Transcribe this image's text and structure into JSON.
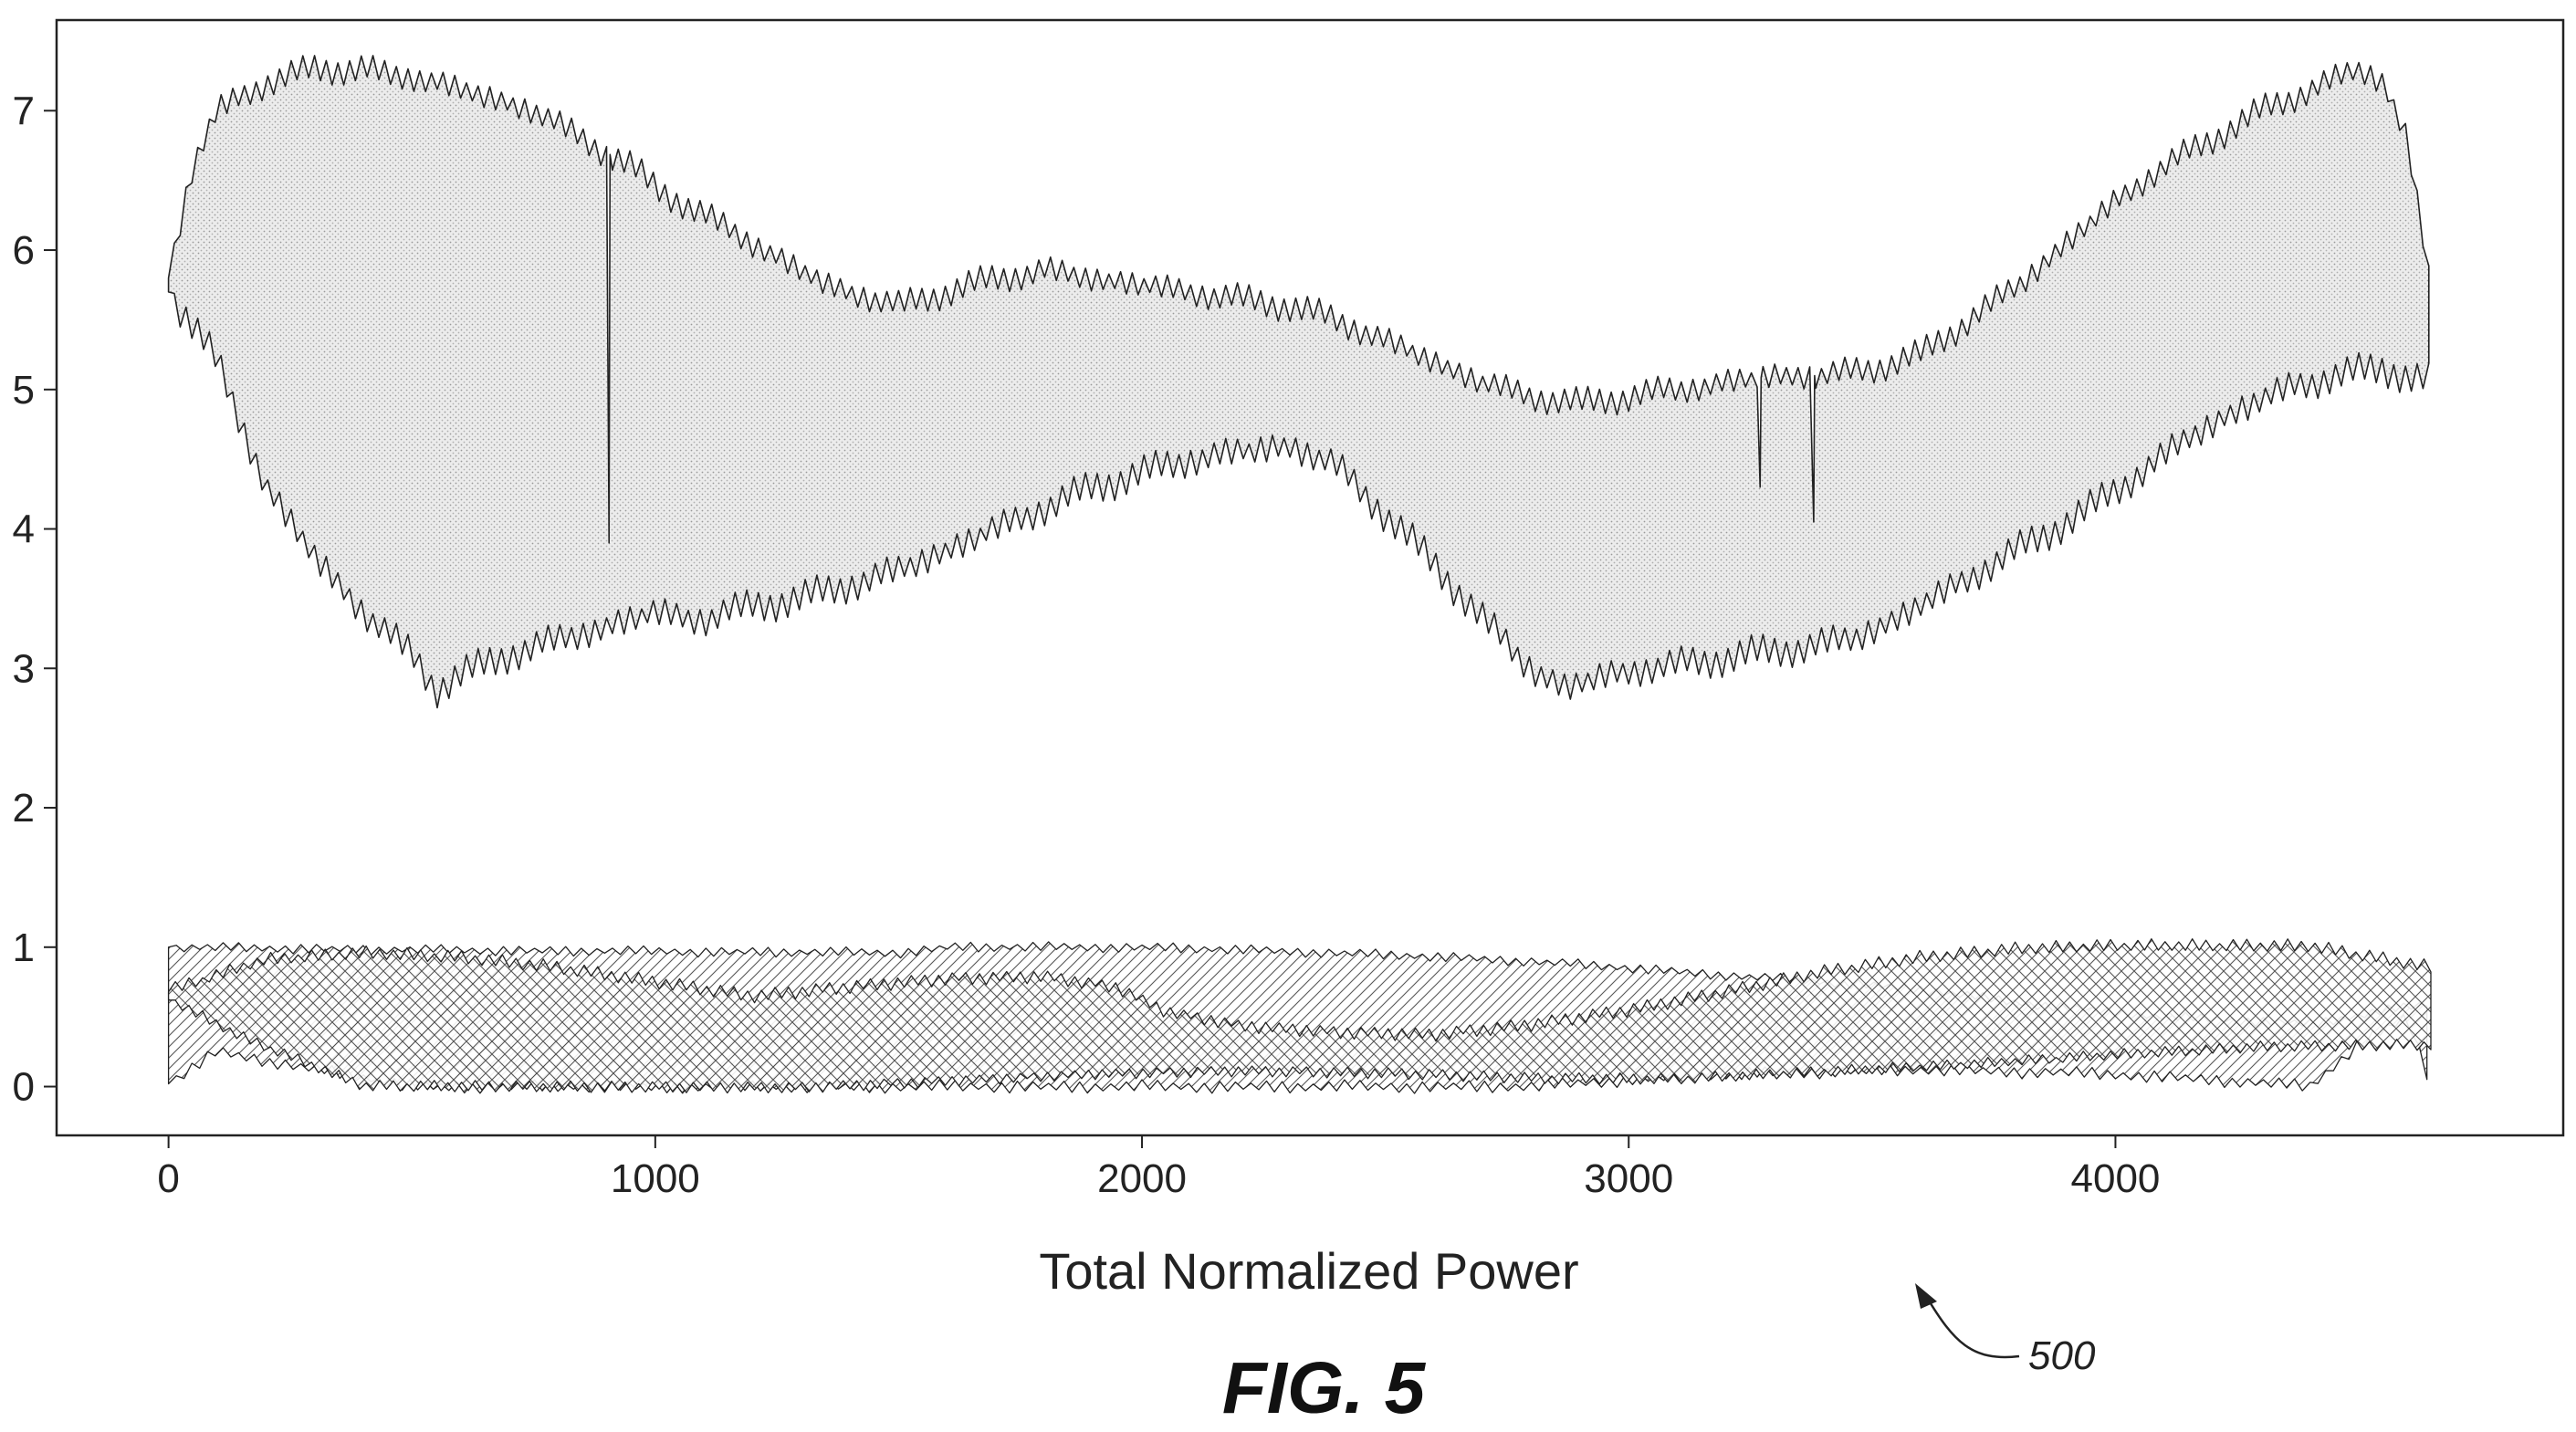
{
  "chart_data": {
    "type": "area",
    "title": "",
    "xlabel": "Total Normalized Power",
    "ylabel": "",
    "xlim": [
      -230,
      4920
    ],
    "ylim": [
      -0.35,
      7.65
    ],
    "x_ticks": [
      0,
      1000,
      2000,
      3000,
      4000
    ],
    "y_ticks": [
      0,
      1,
      2,
      3,
      4,
      5,
      6,
      7
    ],
    "grid": false,
    "series": [
      {
        "fill": "stipple",
        "upper": {
          "x": [
            0,
            50,
            100,
            150,
            200,
            250,
            300,
            350,
            400,
            450,
            500,
            550,
            600,
            650,
            700,
            750,
            800,
            850,
            900,
            950,
            1000,
            1050,
            1100,
            1150,
            1200,
            1250,
            1300,
            1350,
            1400,
            1450,
            1500,
            1600,
            1700,
            1800,
            1900,
            2000,
            2100,
            2200,
            2300,
            2400,
            2500,
            2600,
            2700,
            2800,
            2900,
            3000,
            3100,
            3200,
            3300,
            3400,
            3500,
            3600,
            3700,
            3800,
            3900,
            4000,
            4100,
            4200,
            4300,
            4400,
            4500,
            4550,
            4600,
            4650
          ],
          "y": [
            5.8,
            6.6,
            7.0,
            7.1,
            7.2,
            7.25,
            7.3,
            7.3,
            7.3,
            7.25,
            7.25,
            7.2,
            7.15,
            7.1,
            7.05,
            7.0,
            6.9,
            6.8,
            6.7,
            6.6,
            6.45,
            6.35,
            6.25,
            6.15,
            6.05,
            5.95,
            5.85,
            5.75,
            5.7,
            5.65,
            5.6,
            5.7,
            5.8,
            5.85,
            5.8,
            5.75,
            5.7,
            5.65,
            5.6,
            5.5,
            5.35,
            5.2,
            5.05,
            4.95,
            4.9,
            4.95,
            5.0,
            5.05,
            5.1,
            5.1,
            5.15,
            5.25,
            5.5,
            5.75,
            6.05,
            6.35,
            6.6,
            6.8,
            7.0,
            7.15,
            7.3,
            7.2,
            6.8,
            5.7
          ],
          "dips": [
            [
              905,
              3.9
            ],
            [
              3270,
              4.3
            ],
            [
              3380,
              4.05
            ]
          ]
        },
        "lower": {
          "x": [
            0,
            100,
            200,
            300,
            400,
            500,
            550,
            600,
            700,
            800,
            900,
            1000,
            1100,
            1200,
            1300,
            1400,
            1500,
            1600,
            1700,
            1800,
            1900,
            2000,
            2100,
            2200,
            2300,
            2400,
            2500,
            2600,
            2700,
            2800,
            2870,
            2950,
            3050,
            3150,
            3250,
            3350,
            3450,
            3550,
            3650,
            3750,
            3850,
            3950,
            4050,
            4150,
            4250,
            4350,
            4450,
            4550,
            4650
          ],
          "y": [
            5.7,
            5.2,
            4.3,
            3.8,
            3.4,
            3.1,
            2.85,
            2.95,
            3.1,
            3.2,
            3.3,
            3.4,
            3.35,
            3.45,
            3.5,
            3.6,
            3.7,
            3.85,
            4.0,
            4.15,
            4.3,
            4.4,
            4.5,
            4.55,
            4.6,
            4.45,
            4.1,
            3.75,
            3.35,
            3.0,
            2.85,
            2.95,
            3.0,
            3.05,
            3.1,
            3.15,
            3.2,
            3.35,
            3.55,
            3.75,
            3.95,
            4.15,
            4.4,
            4.65,
            4.85,
            5.0,
            5.1,
            5.15,
            5.05
          ]
        }
      },
      {
        "fill": "crosshatch",
        "upper": {
          "x": [
            0,
            200,
            400,
            600,
            800,
            1000,
            1200,
            1400,
            1600,
            1800,
            1950,
            2050,
            2200,
            2400,
            2600,
            2800,
            3000,
            3200,
            3400,
            3600,
            3800,
            4000,
            4200,
            4400,
            4650
          ],
          "y": [
            0.68,
            0.9,
            0.95,
            0.92,
            0.85,
            0.75,
            0.65,
            0.72,
            0.78,
            0.8,
            0.72,
            0.55,
            0.45,
            0.4,
            0.38,
            0.45,
            0.55,
            0.68,
            0.82,
            0.92,
            0.98,
            1.0,
            1.0,
            1.0,
            0.85
          ]
        },
        "lower": {
          "x": [
            0,
            150,
            400,
            700,
            1000,
            1300,
            1600,
            1900,
            2200,
            2500,
            2800,
            3100,
            3400,
            3700,
            4000,
            4300,
            4650
          ],
          "y": [
            0.62,
            0.35,
            0.0,
            0.0,
            0.0,
            0.0,
            0.05,
            0.1,
            0.12,
            0.1,
            0.06,
            0.05,
            0.1,
            0.15,
            0.22,
            0.28,
            0.3
          ]
        }
      },
      {
        "fill": "diagonal",
        "upper": {
          "x": [
            0,
            500,
            1000,
            1500,
            1600,
            2000,
            2400,
            2800,
            3200,
            3600,
            3800,
            4100,
            4400,
            4650
          ],
          "y": [
            1.0,
            0.98,
            0.97,
            0.96,
            1.0,
            1.0,
            0.96,
            0.9,
            0.8,
            0.7,
            0.6,
            0.5,
            0.45,
            0.6
          ]
        },
        "lower": {
          "x": [
            0,
            100,
            500,
            1000,
            1500,
            2000,
            2400,
            2800,
            3000,
            3300,
            3600,
            3900,
            4200,
            4400,
            4500,
            4600,
            4650
          ],
          "y": [
            0.02,
            0.25,
            0.0,
            0.0,
            0.0,
            0.0,
            0.0,
            0.0,
            0.05,
            0.1,
            0.12,
            0.1,
            0.05,
            0.0,
            0.3,
            0.5,
            0.0
          ]
        }
      }
    ]
  },
  "figure": {
    "caption": "FIG. 5",
    "reference_numeral": "500"
  },
  "colors": {
    "ink": "#222222",
    "stipple_fill": "#ececec",
    "background": "#ffffff"
  }
}
